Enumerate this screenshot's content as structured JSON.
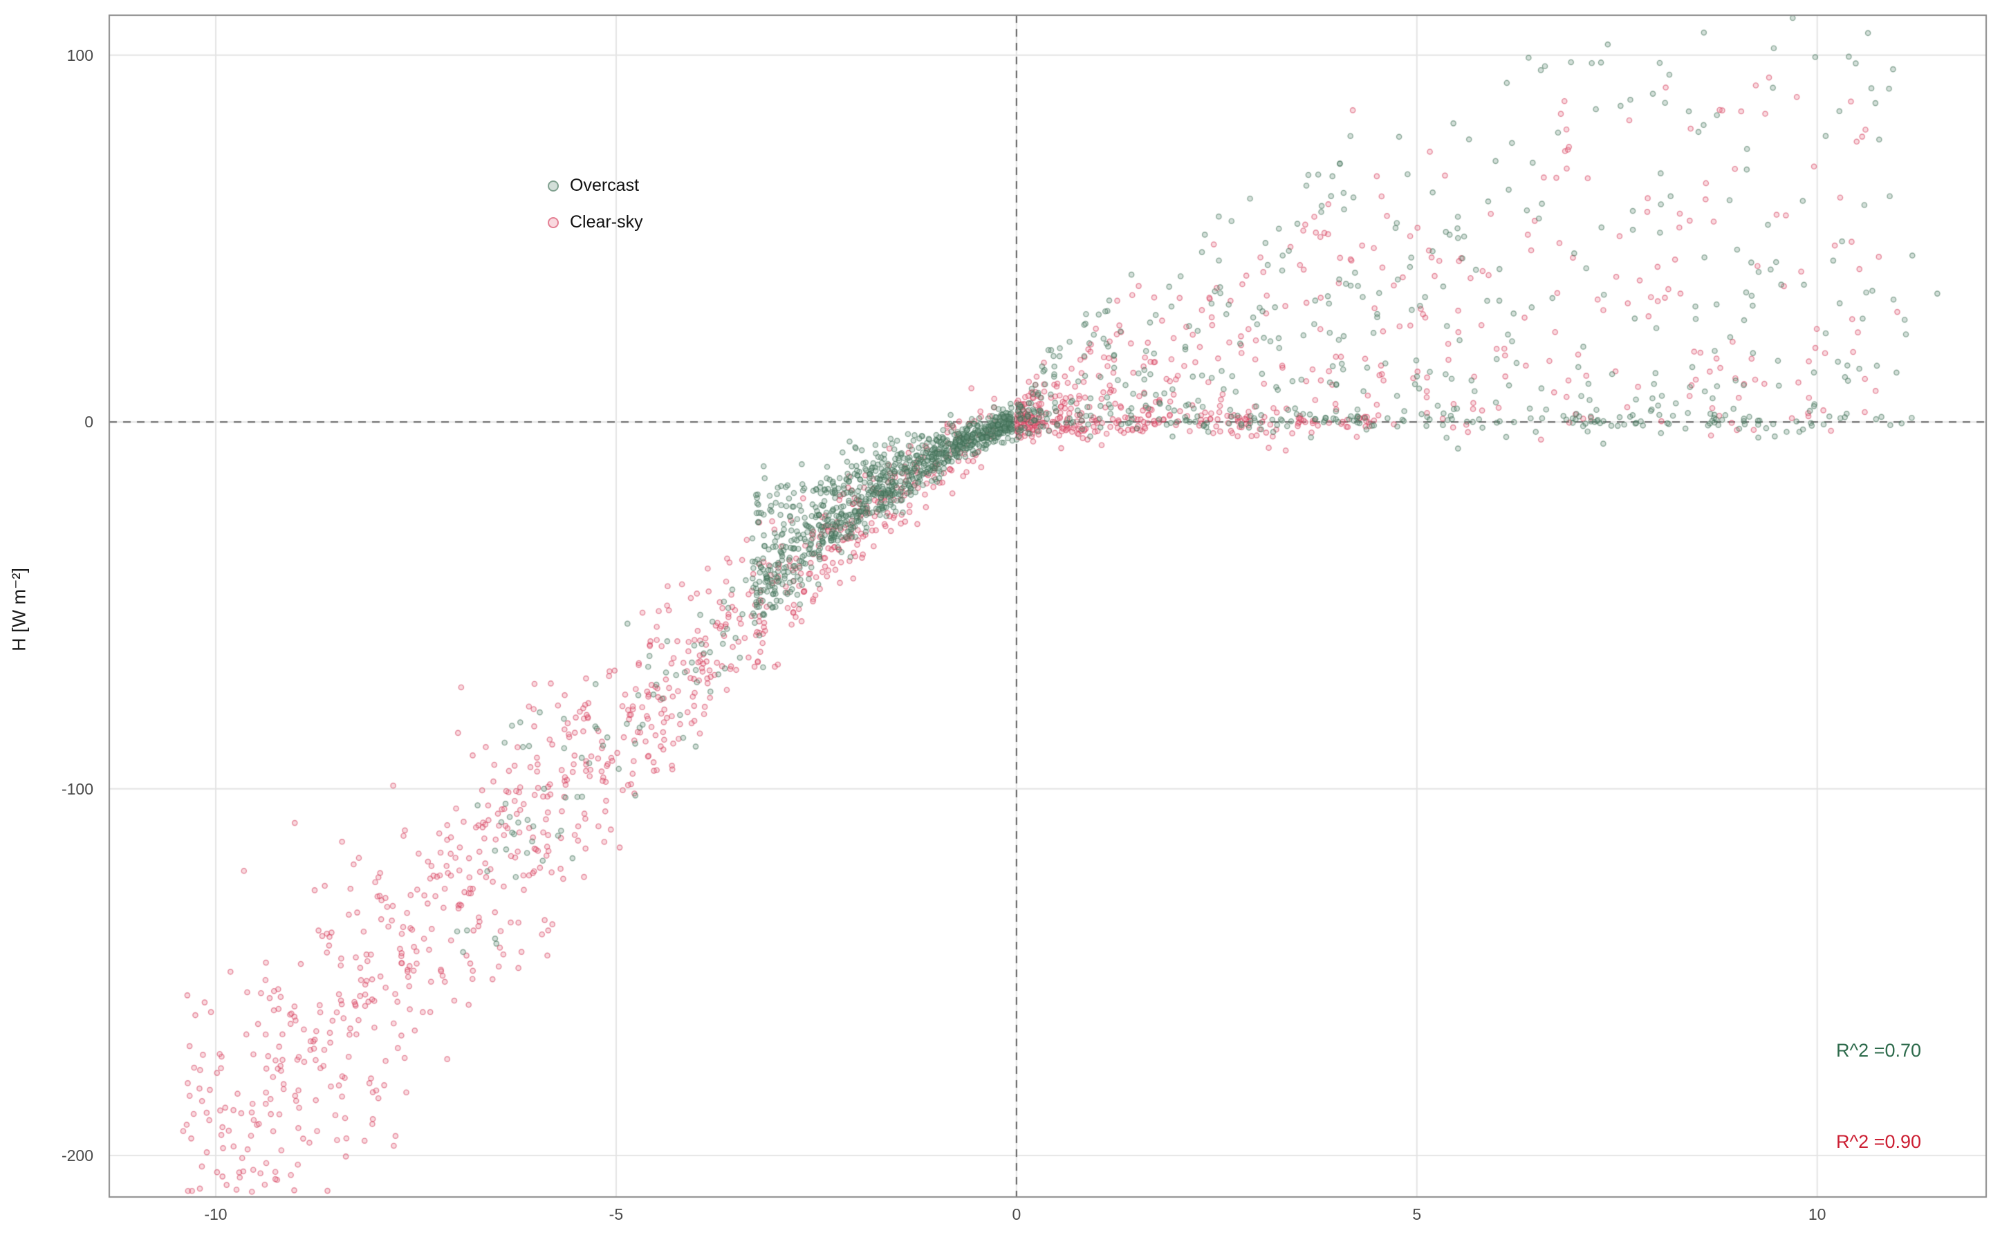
{
  "figure": {
    "y_axis_label": "H [W m⁻²]",
    "x_axis_label": "",
    "legend": {
      "items": [
        {
          "label": "Overcast"
        },
        {
          "label": "Clear-sky"
        }
      ]
    },
    "annotations": [
      {
        "text": "R^2 =0.70",
        "color": "#2e6b4c"
      },
      {
        "text": "R^2 =0.90",
        "color": "#cc1f33"
      }
    ]
  },
  "chart_data": {
    "type": "scatter",
    "title": "",
    "xlabel": "",
    "ylabel": "H [W m⁻²]",
    "xlim": [
      -11.33,
      12.11
    ],
    "ylim": [
      -211.3,
      110.9
    ],
    "x_ticks": [
      -10,
      -5,
      0,
      5,
      10
    ],
    "y_ticks": [
      100,
      0,
      -100,
      -200
    ],
    "grid": true,
    "zero_reference_lines": {
      "x": 0,
      "y": 0,
      "style": "dashed",
      "color": "#5f5f5f"
    },
    "grid_color": "#e4e4e4",
    "panel_border_color": "#8a8a8a",
    "legend_position": "top-left-inside",
    "relationship": "H rises steeply negative for negative x following H = -11.8*|x|^1.23 down to about -200 W m-2 at x = -10 (mostly clear-sky), with a dense overcast wedge between the curve and zero for -3 < x < 0; for positive x points scatter between 0 and an upper envelope near 30*x^0.6 reaching about 100 W m-2",
    "curve": {
      "a": 11.8,
      "p": 1.23
    },
    "series": [
      {
        "name": "Overcast",
        "stroke": "rgba(62,110,84,0.55)",
        "fill": "rgba(110,150,130,0.30)",
        "r_squared": 0.7,
        "clusters": [
          {
            "kind": "neg_wedge",
            "seed": 21,
            "count": 950,
            "x_min": 0.05,
            "x_max": 3.3,
            "x_pow": 1.25,
            "frac_min": 0.3,
            "frac_span": 0.75,
            "frac_pow": 0.6,
            "y_abs_sd": 2.0
          },
          {
            "kind": "neg_curve",
            "seed": 22,
            "count": 140,
            "x_min": 1.5,
            "x_max": 7.0,
            "x_pow": 1.1,
            "y_rel_sd": 0.12,
            "y_abs_sd": 4
          },
          {
            "kind": "pos_spread",
            "seed": 23,
            "count": 430,
            "x_max": 11.2,
            "x_pow": 1.3,
            "env_a": 32,
            "env_p": 0.6,
            "y_pow": 1.5,
            "y_abs_sd": 3
          },
          {
            "kind": "flat_zero",
            "seed": 24,
            "count": 160,
            "x_min": 0.1,
            "x_max": 11.3,
            "x_pow": 1.1,
            "y_mean": 0.3,
            "y_sd": 1.6
          }
        ],
        "extra_points": [
          [
            11.5,
            35
          ],
          [
            8.1,
            87
          ],
          [
            7.3,
            98
          ],
          [
            6.6,
            97
          ],
          [
            9.0,
            47
          ],
          [
            10.2,
            44
          ]
        ]
      },
      {
        "name": "Clear-sky",
        "stroke": "rgba(210,55,85,0.55)",
        "fill": "rgba(235,130,150,0.30)",
        "r_squared": 0.9,
        "clusters": [
          {
            "kind": "neg_curve",
            "seed": 11,
            "count": 950,
            "x_min": 0.25,
            "x_max": 10.45,
            "x_pow": 0.9,
            "y_rel_sd": 0.15,
            "y_abs_sd": 5
          },
          {
            "kind": "pos_spread",
            "seed": 12,
            "count": 430,
            "x_max": 10.8,
            "x_pow": 1.5,
            "env_a": 26,
            "env_p": 0.62,
            "y_pow": 1.6,
            "y_abs_sd": 3
          },
          {
            "kind": "flat_zero",
            "seed": 13,
            "count": 180,
            "x_min": 0.05,
            "x_max": 4.5,
            "x_pow": 1.8,
            "y_mean": -0.5,
            "y_sd": 1.8
          }
        ],
        "extra_points": [
          [
            9.8,
            41
          ],
          [
            11.0,
            30
          ],
          [
            6.9,
            75
          ],
          [
            4.5,
            67
          ],
          [
            4.2,
            85
          ]
        ]
      }
    ]
  }
}
